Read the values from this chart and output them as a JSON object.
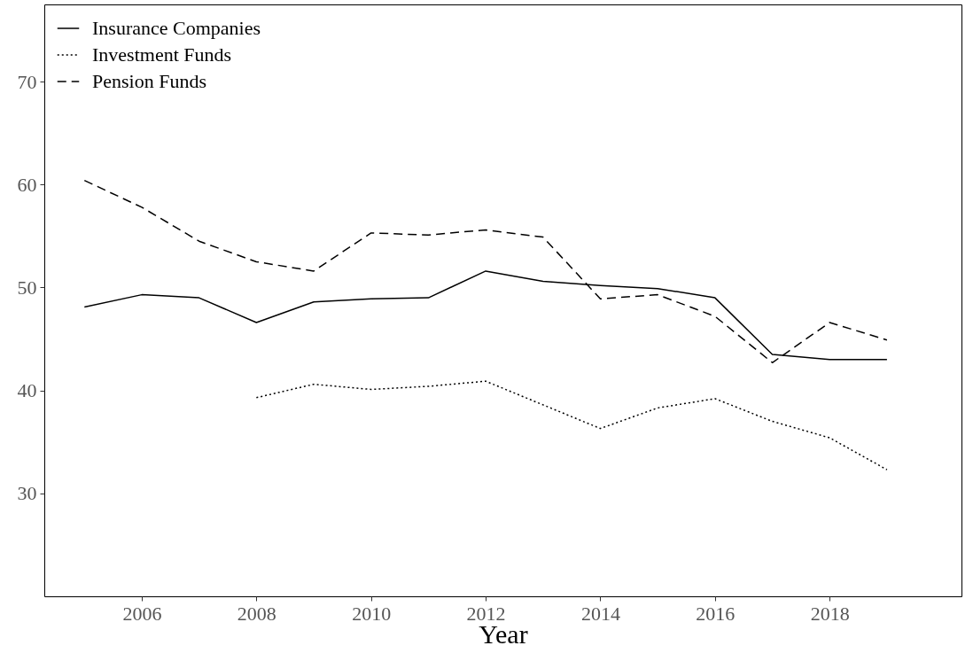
{
  "chart_data": {
    "type": "line",
    "xlabel": "Year",
    "x": [
      2005,
      2006,
      2007,
      2008,
      2009,
      2010,
      2011,
      2012,
      2013,
      2014,
      2015,
      2016,
      2017,
      2018,
      2019
    ],
    "series": [
      {
        "name": "Insurance Companies",
        "color": "#000000",
        "line_style": "solid",
        "values": [
          48.1,
          49.3,
          49.0,
          46.6,
          48.6,
          48.9,
          49.0,
          51.6,
          50.6,
          50.2,
          49.9,
          49.0,
          43.5,
          43.0,
          43.0
        ]
      },
      {
        "name": "Investment Funds",
        "color": "#000000",
        "line_style": "dotted",
        "x": [
          2008,
          2009,
          2010,
          2011,
          2012,
          2013,
          2014,
          2015,
          2016,
          2017,
          2018,
          2019
        ],
        "values": [
          39.3,
          40.6,
          40.1,
          40.4,
          40.9,
          38.6,
          36.3,
          38.3,
          39.2,
          37.0,
          35.4,
          32.3
        ]
      },
      {
        "name": "Pension Funds",
        "color": "#000000",
        "line_style": "dashed",
        "values": [
          60.4,
          57.8,
          54.5,
          52.5,
          51.6,
          55.3,
          55.1,
          55.6,
          54.9,
          48.9,
          49.3,
          47.2,
          42.7,
          46.6,
          44.9
        ]
      }
    ],
    "xlim": [
      2004.3,
      2020.3
    ],
    "xticks": [
      2006,
      2008,
      2010,
      2012,
      2014,
      2016,
      2018
    ],
    "ylim": [
      20,
      77.5
    ],
    "yticks": [
      30,
      40,
      50,
      60,
      70
    ],
    "grid": false,
    "legend": "top left",
    "marker": "none"
  }
}
